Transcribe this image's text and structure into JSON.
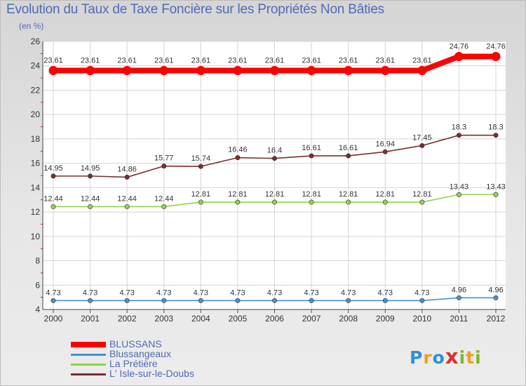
{
  "title": "Evolution du Taux de Taxe Foncière sur les Propriétés Non Bâties",
  "subtitle": "(en %)",
  "logo": {
    "text": "ProXiti",
    "letters": [
      "P",
      "r",
      "o",
      "x",
      "i",
      "t",
      "i"
    ],
    "colors": [
      "#2f8fd6",
      "#f0a020",
      "#2f8fd6",
      "#d8342c",
      "#7ab82e",
      "#f0a020",
      "#7ab82e"
    ]
  },
  "chart_data": {
    "type": "line",
    "title": "Evolution du Taux de Taxe Foncière sur les Propriétés Non Bâties",
    "ylabel": "(en %)",
    "xlabel": "",
    "ylim": [
      4,
      26
    ],
    "yticks": [
      4,
      6,
      8,
      10,
      12,
      14,
      16,
      18,
      20,
      22,
      24,
      26
    ],
    "grid": true,
    "categories": [
      "2000",
      "2001",
      "2002",
      "2003",
      "2004",
      "2005",
      "2006",
      "2007",
      "2008",
      "2009",
      "2010",
      "2011",
      "2012"
    ],
    "series": [
      {
        "name": "BLUSSANS",
        "color": "#ff0000",
        "emphasis": true,
        "values": [
          23.61,
          23.61,
          23.61,
          23.61,
          23.61,
          23.61,
          23.61,
          23.61,
          23.61,
          23.61,
          23.61,
          24.76,
          24.76
        ],
        "labels": [
          "23.61",
          "23.61",
          "23.61",
          "23.61",
          "23.61",
          "23.61",
          "23.61",
          "23.61",
          "23.61",
          "23.61",
          "23.61",
          "24.76",
          "24.76"
        ]
      },
      {
        "name": "Blussangeaux",
        "color": "#4a90c8",
        "values": [
          4.73,
          4.73,
          4.73,
          4.73,
          4.73,
          4.73,
          4.73,
          4.73,
          4.73,
          4.73,
          4.73,
          4.96,
          4.96
        ],
        "labels": [
          "4.73",
          "4.73",
          "4.73",
          "4.73",
          "4.73",
          "4.73",
          "4.73",
          "4.73",
          "4.73",
          "4.73",
          "4.73",
          "4.96",
          "4.96"
        ]
      },
      {
        "name": "La Prétière",
        "color": "#8ed44a",
        "values": [
          12.44,
          12.44,
          12.44,
          12.44,
          12.81,
          12.81,
          12.81,
          12.81,
          12.81,
          12.81,
          12.81,
          13.43,
          13.43
        ],
        "labels": [
          "12.44",
          "12.44",
          "12.44",
          "12.44",
          "12.81",
          "12.81",
          "12.81",
          "12.81",
          "12.81",
          "12.81",
          "12.81",
          "13.43",
          "13.43"
        ]
      },
      {
        "name": "L' Isle-sur-le-Doubs",
        "color": "#7a2e2e",
        "values": [
          14.95,
          14.95,
          14.86,
          15.77,
          15.74,
          16.46,
          16.4,
          16.61,
          16.61,
          16.94,
          17.45,
          18.3,
          18.3
        ],
        "labels": [
          "14.95",
          "14.95",
          "14.86",
          "15.77",
          "15.74",
          "16.46",
          "16.4",
          "16.61",
          "16.61",
          "16.94",
          "17.45",
          "18.3",
          "18.3"
        ]
      }
    ],
    "legend": "bottom-left"
  }
}
